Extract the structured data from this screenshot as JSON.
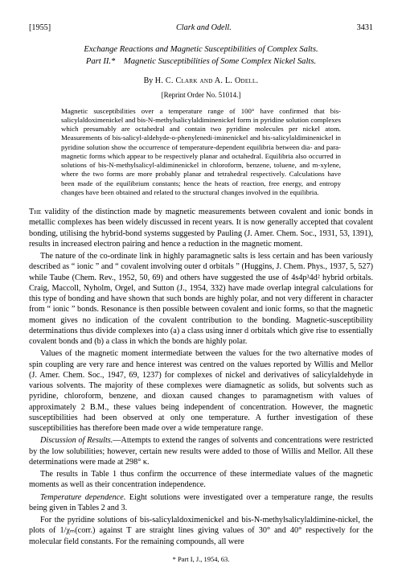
{
  "header": {
    "year": "[1955]",
    "running_head": "Clark and Odell.",
    "page_number": "3431"
  },
  "title": {
    "line1": "Exchange Reactions and Magnetic Susceptibilities of Complex Salts.",
    "line2": "Part II.* Magnetic Susceptibilities of Some Complex Nickel Salts."
  },
  "byline": {
    "prefix": "By ",
    "authors": "H. C. Clark and A. L. Odell."
  },
  "reprint": "[Reprint Order No. 51014.]",
  "abstract": "Magnetic susceptibilities over a temperature range of 100° have confirmed that bis-salicylaldoximenickel and bis-N-methylsalicylaldiminenickel form in pyridine solution complexes which presumably are octahedral and contain two pyridine molecules per nickel atom. Measurements of bis-salicyl-aldehyde-o-phenylenedi-iminenickel and bis-salicylaldiminenickel in pyridine solution show the occurrence of temperature-dependent equilibria between dia- and para-magnetic forms which appear to be respectively planar and octahedral. Equilibria also occurred in solutions of bis-N-methylsalicyl-aldiminenickel in chloroform, benzene, toluene, and m-xylene, where the two forms are more probably planar and tetrahedral respectively. Calculations have been made of the equilibrium constants; hence the heats of reaction, free energy, and entropy changes have been obtained and related to the structural changes involved in the equilibria.",
  "body": {
    "p1": "The validity of the distinction made by magnetic measurements between covalent and ionic bonds in metallic complexes has been widely discussed in recent years. It is now generally accepted that covalent bonding, utilising the hybrid-bond systems suggested by Pauling (J. Amer. Chem. Soc., 1931, 53, 1391), results in increased electron pairing and hence a reduction in the magnetic moment.",
    "p2": "The nature of the co-ordinate link in highly paramagnetic salts is less certain and has been variously described as “ ionic ” and “ covalent involving outer d orbitals ” (Huggins, J. Chem. Phys., 1937, 5, 527) while Taube (Chem. Rev., 1952, 50, 69) and others have suggested the use of 4s4p³4d² hybrid orbitals. Craig, Maccoll, Nyholm, Orgel, and Sutton (J., 1954, 332) have made overlap integral calculations for this type of bonding and have shown that such bonds are highly polar, and not very different in character from “ ionic ” bonds. Resonance is then possible between covalent and ionic forms, so that the magnetic moment gives no indication of the covalent contribution to the bonding. Magnetic-susceptibility determinations thus divide complexes into (a) a class using inner d orbitals which give rise to essentially covalent bonds and (b) a class in which the bonds are highly polar.",
    "p3": "Values of the magnetic moment intermediate between the values for the two alternative modes of spin coupling are very rare and hence interest was centred on the values reported by Willis and Mellor (J. Amer. Chem. Soc., 1947, 69, 1237) for complexes of nickel and derivatives of salicylaldehyde in various solvents. The majority of these complexes were diamagnetic as solids, but solvents such as pyridine, chloroform, benzene, and dioxan caused changes to paramagnetism with values of approximately 2 B.M., these values being independent of concentration. However, the magnetic susceptibilities had been observed at only one temperature. A further investigation of these susceptibilities has therefore been made over a wide temperature range.",
    "p4_head": "Discussion of Results.",
    "p4_body": "—Attempts to extend the ranges of solvents and concentrations were restricted by the low solubilities; however, certain new results were added to those of Willis and Mellor. All these determinations were made at 298° κ.",
    "p5": "The results in Table 1 thus confirm the occurrence of these intermediate values of the magnetic moments as well as their concentration independence.",
    "p6_head": "Temperature dependence.",
    "p6_body": " Eight solutions were investigated over a temperature range, the results being given in Tables 2 and 3.",
    "p7": "For the pyridine solutions of bis-salicylaldoximenickel and bis-N-methylsalicylaldimine-nickel, the plots of 1/χₘ(corr.) against T are straight lines giving values of 30° and 40° respectively for the molecular field constants. For the remaining compounds, all were"
  },
  "footnote": "* Part I, J., 1954, 63."
}
